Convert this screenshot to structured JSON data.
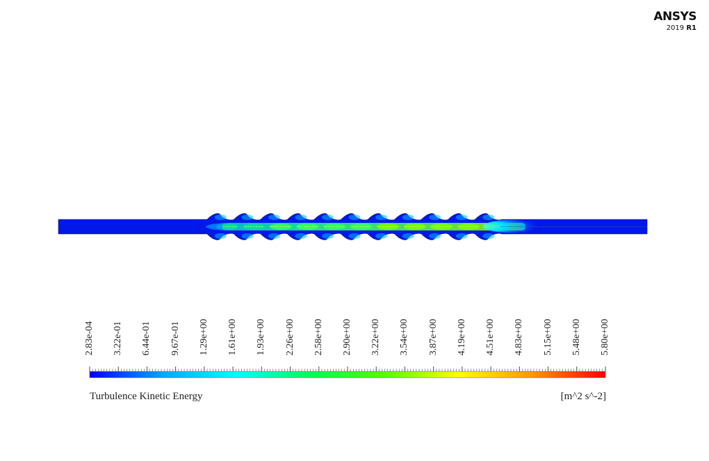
{
  "logo": {
    "brand": "ANSYS",
    "version_year": "2019",
    "version_release": "R1"
  },
  "legend": {
    "title": "Turbulence Kinetic Energy",
    "units": "[m^2 s^-2]",
    "min": 0.000283,
    "max": 5.8,
    "tick_labels": [
      "2.83e-04",
      "3.22e-01",
      "6.44e-01",
      "9.67e-01",
      "1.29e+00",
      "1.61e+00",
      "1.93e+00",
      "2.26e+00",
      "2.58e+00",
      "2.90e+00",
      "3.22e+00",
      "3.54e+00",
      "3.87e+00",
      "4.19e+00",
      "4.51e+00",
      "4.83e+00",
      "5.15e+00",
      "5.48e+00",
      "5.80e+00"
    ],
    "colormap": [
      "#0000ff",
      "#00aaff",
      "#00ffff",
      "#00ff55",
      "#55ff00",
      "#ffff00",
      "#ff9900",
      "#ff0000"
    ]
  },
  "contour": {
    "field": "Turbulence Kinetic Energy",
    "corrugation_count": 11,
    "low_color": "#0022ee",
    "mid_color": "#00e0a0",
    "high_color": "#7cff00"
  }
}
